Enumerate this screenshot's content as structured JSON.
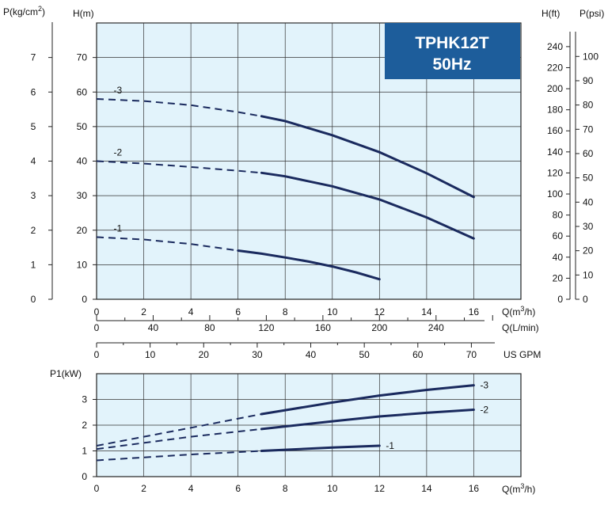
{
  "badge": {
    "model": "TPHK12T",
    "frequency": "50Hz",
    "fill": "#1d5d9b"
  },
  "colors": {
    "plot_bg": "#e2f3fb",
    "grid": "#333333",
    "curve": "#1a2a5e"
  },
  "axis_titles": {
    "pressure": "P(kg/cm2)",
    "head_m": "H(m)",
    "head_ft": "H(ft)",
    "pressure_psi": "P(psi)",
    "flow_m3h": "Q(m3/h)",
    "flow_lmin": "Q(L/min)",
    "flow_gpm": "US GPM",
    "power": "P1(kW)",
    "flow_m3h_power": "Q(m3/h)"
  },
  "chart_data": [
    {
      "type": "line",
      "title": "",
      "xlabel": "Q(m3/h)",
      "ylabel": "H(m)",
      "xlim": [
        0,
        18
      ],
      "ylim": [
        0,
        80
      ],
      "xticks": [
        0,
        2,
        4,
        6,
        8,
        10,
        12,
        14,
        16
      ],
      "yticks": [
        0,
        10,
        20,
        30,
        40,
        50,
        60,
        70
      ],
      "grid": true,
      "secondary_axes": {
        "left_pressure_kg_cm2": [
          0,
          1,
          2,
          3,
          4,
          5,
          6,
          7
        ],
        "right_head_ft": [
          0,
          20,
          40,
          60,
          80,
          100,
          120,
          140,
          160,
          180,
          200,
          220,
          240
        ],
        "right_pressure_psi": [
          0,
          10,
          20,
          30,
          40,
          50,
          60,
          70,
          80,
          90,
          100
        ],
        "bottom_flow_l_min": [
          0,
          40,
          80,
          120,
          160,
          200,
          240
        ],
        "bottom_flow_us_gpm": [
          0,
          10,
          20,
          30,
          40,
          50,
          60,
          70
        ]
      },
      "series": [
        {
          "name": "-1",
          "dashed_until_x": 6,
          "x": [
            0,
            2,
            4,
            6,
            7,
            8,
            9,
            10,
            11,
            12
          ],
          "y": [
            18,
            17.3,
            16,
            14.1,
            13.2,
            12.1,
            10.9,
            9.5,
            7.8,
            5.8
          ]
        },
        {
          "name": "-2",
          "dashed_until_x": 7,
          "x": [
            0,
            2,
            4,
            6,
            7,
            8,
            10,
            12,
            14,
            16
          ],
          "y": [
            40,
            39.3,
            38.3,
            37.2,
            36.6,
            35.6,
            32.7,
            28.9,
            23.7,
            17.6
          ]
        },
        {
          "name": "-3",
          "dashed_until_x": 7,
          "x": [
            0,
            2,
            4,
            6,
            7,
            8,
            10,
            12,
            14,
            16
          ],
          "y": [
            58,
            57.4,
            56.2,
            54.2,
            53,
            51.6,
            47.5,
            42.6,
            36.5,
            29.6
          ]
        }
      ]
    },
    {
      "type": "line",
      "title": "",
      "xlabel": "Q(m3/h)",
      "ylabel": "P1(kW)",
      "xlim": [
        0,
        18
      ],
      "ylim": [
        0,
        4
      ],
      "xticks": [
        0,
        2,
        4,
        6,
        8,
        10,
        12,
        14,
        16
      ],
      "yticks": [
        0,
        1,
        2,
        3
      ],
      "grid": true,
      "series": [
        {
          "name": "-1",
          "dashed_until_x": 7,
          "x": [
            0,
            4,
            7,
            10,
            12
          ],
          "y": [
            0.63,
            0.86,
            1.0,
            1.13,
            1.2
          ]
        },
        {
          "name": "-2",
          "dashed_until_x": 7,
          "x": [
            0,
            4,
            7,
            10,
            12,
            14,
            16
          ],
          "y": [
            1.07,
            1.55,
            1.85,
            2.15,
            2.34,
            2.48,
            2.6
          ]
        },
        {
          "name": "-3",
          "dashed_until_x": 7,
          "x": [
            0,
            4,
            7,
            10,
            12,
            14,
            16
          ],
          "y": [
            1.2,
            1.9,
            2.43,
            2.88,
            3.15,
            3.37,
            3.55
          ]
        }
      ]
    }
  ]
}
